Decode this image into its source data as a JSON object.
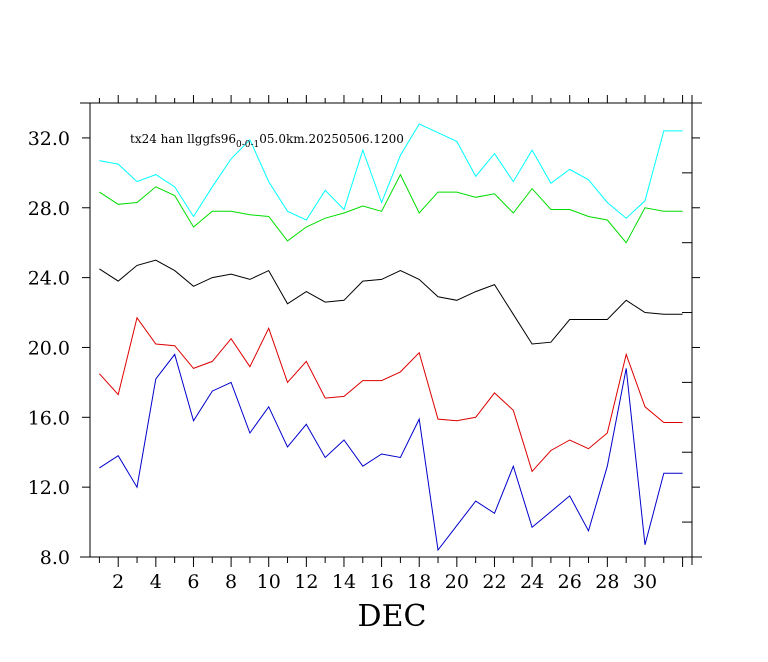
{
  "chart_data": {
    "type": "line",
    "title_parts": {
      "main": "tx24 han llggfs96",
      "sub": "0-0-1",
      "rest": "05.0km.20250506.1200"
    },
    "xlabel": "DEC",
    "ylabel": "",
    "xlim": [
      0.5,
      32.5
    ],
    "ylim": [
      8,
      34
    ],
    "x_ticks": [
      2,
      4,
      6,
      8,
      10,
      12,
      14,
      16,
      18,
      20,
      22,
      24,
      26,
      28,
      30
    ],
    "x_tick_labels": [
      "2",
      "4",
      "6",
      "8",
      "10",
      "12",
      "14",
      "16",
      "18",
      "20",
      "22",
      "24",
      "26",
      "28",
      "30"
    ],
    "y_ticks": [
      8,
      12,
      16,
      20,
      24,
      28,
      32
    ],
    "y_tick_labels": [
      "8.0",
      "12.0",
      "16.0",
      "20.0",
      "24.0",
      "28.0",
      "32.0"
    ],
    "x": [
      1,
      2,
      3,
      4,
      5,
      6,
      7,
      8,
      9,
      10,
      11,
      12,
      13,
      14,
      15,
      16,
      17,
      18,
      19,
      20,
      21,
      22,
      23,
      24,
      25,
      26,
      27,
      28,
      29,
      30,
      31,
      32
    ],
    "series": [
      {
        "color": "#00ffff",
        "values": [
          30.7,
          30.5,
          29.5,
          29.9,
          29.2,
          27.5,
          29.2,
          30.8,
          31.9,
          29.5,
          27.8,
          27.3,
          29.0,
          27.9,
          31.3,
          28.3,
          31.0,
          32.8,
          32.3,
          31.8,
          29.8,
          31.1,
          29.5,
          31.3,
          29.4,
          30.2,
          29.6,
          28.3,
          27.4,
          28.4,
          32.4,
          32.4
        ]
      },
      {
        "color": "#00dd00",
        "values": [
          28.9,
          28.2,
          28.3,
          29.2,
          28.7,
          26.9,
          27.8,
          27.8,
          27.6,
          27.5,
          26.1,
          26.9,
          27.4,
          27.7,
          28.1,
          27.8,
          29.9,
          27.7,
          28.9,
          28.9,
          28.6,
          28.8,
          27.7,
          29.1,
          27.9,
          27.9,
          27.5,
          27.3,
          26.0,
          28.0,
          27.8,
          27.8
        ]
      },
      {
        "color": "#000000",
        "values": [
          24.5,
          23.8,
          24.7,
          25.0,
          24.4,
          23.5,
          24.0,
          24.2,
          23.9,
          24.4,
          22.5,
          23.2,
          22.6,
          22.7,
          23.8,
          23.9,
          24.4,
          23.9,
          22.9,
          22.7,
          23.2,
          23.6,
          21.9,
          20.2,
          20.3,
          21.6,
          21.6,
          21.6,
          22.7,
          22.0,
          21.9,
          21.9
        ]
      },
      {
        "color": "#dd0000",
        "values": [
          18.5,
          17.3,
          21.7,
          20.2,
          20.1,
          18.8,
          19.2,
          20.5,
          18.9,
          21.1,
          18.0,
          19.2,
          17.1,
          17.2,
          18.1,
          18.1,
          18.6,
          19.7,
          15.9,
          15.8,
          16.0,
          17.4,
          16.4,
          12.9,
          14.1,
          14.7,
          14.2,
          15.1,
          19.6,
          16.6,
          15.7,
          15.7
        ]
      },
      {
        "color": "#0000cc",
        "values": [
          13.1,
          13.8,
          12.0,
          18.2,
          19.6,
          15.8,
          17.5,
          18.0,
          15.1,
          16.6,
          14.3,
          15.6,
          13.7,
          14.7,
          13.2,
          13.9,
          13.7,
          15.9,
          8.4,
          9.8,
          11.2,
          10.5,
          13.2,
          9.7,
          10.6,
          11.5,
          9.5,
          13.2,
          18.8,
          8.7,
          12.8,
          12.8
        ]
      }
    ]
  }
}
